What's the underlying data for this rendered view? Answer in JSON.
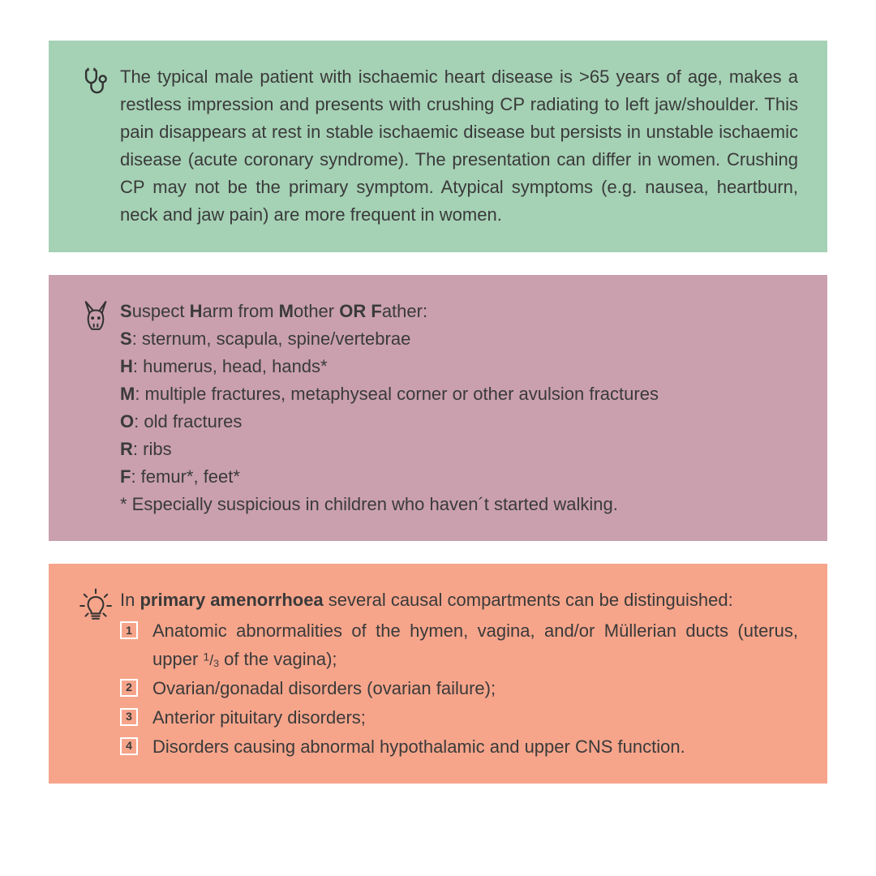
{
  "colors": {
    "panel1_bg": "#a5d1b5",
    "panel2_bg": "#caa0ae",
    "panel3_bg": "#f6a58b",
    "text": "#3a3a3a",
    "icon": "#323232",
    "badge_border": "#ffffff"
  },
  "panel1": {
    "icon": "stethoscope-icon",
    "text": "The typical male patient with ischaemic heart disease is >65 years of age, makes a restless impression and presents with crushing CP radiating to left jaw/shoulder. This pain disappears at rest in stable ischaemic disease but persists in unstable ischaemic disease (acute coronary syndrome). The presentation can differ in women. Crushing CP may not be the primary symptom. Atypical symptoms (e.g. nausea, heartburn, neck and jaw pain) are more frequent in women."
  },
  "panel2": {
    "icon": "donkey-icon",
    "heading_parts": [
      "S",
      "uspect ",
      "H",
      "arm from ",
      "M",
      "other ",
      "OR",
      " ",
      "F",
      "ather:"
    ],
    "lines": [
      {
        "b": "S",
        "t": ": sternum, scapula, spine/vertebrae"
      },
      {
        "b": "H",
        "t": ": humerus, head, hands*"
      },
      {
        "b": "M",
        "t": ": multiple fractures, metaphyseal corner or other avulsion fractures"
      },
      {
        "b": "O",
        "t": ": old fractures"
      },
      {
        "b": "R",
        "t": ": ribs"
      },
      {
        "b": "F",
        "t": ": femur*, feet*"
      }
    ],
    "footnote": "* Especially suspicious in children who haven´t started walking."
  },
  "panel3": {
    "icon": "lightbulb-icon",
    "intro_pre": "In ",
    "intro_bold": "primary amenorrhoea",
    "intro_post": " several causal compartments can be dis­tinguished:",
    "items": [
      {
        "n": "1",
        "pre": "Anatomic abnormalities of the hymen, vagina, and/or Müllerian ducts (uterus, upper ",
        "frac_num": "1",
        "frac_den": "3",
        "post": " of the vagina);"
      },
      {
        "n": "2",
        "text": "Ovarian/gonadal disorders (ovarian failure);"
      },
      {
        "n": "3",
        "text": "Anterior pituitary disorders;"
      },
      {
        "n": "4",
        "text": "Disorders causing abnormal hypothalamic and upper CNS function."
      }
    ]
  }
}
